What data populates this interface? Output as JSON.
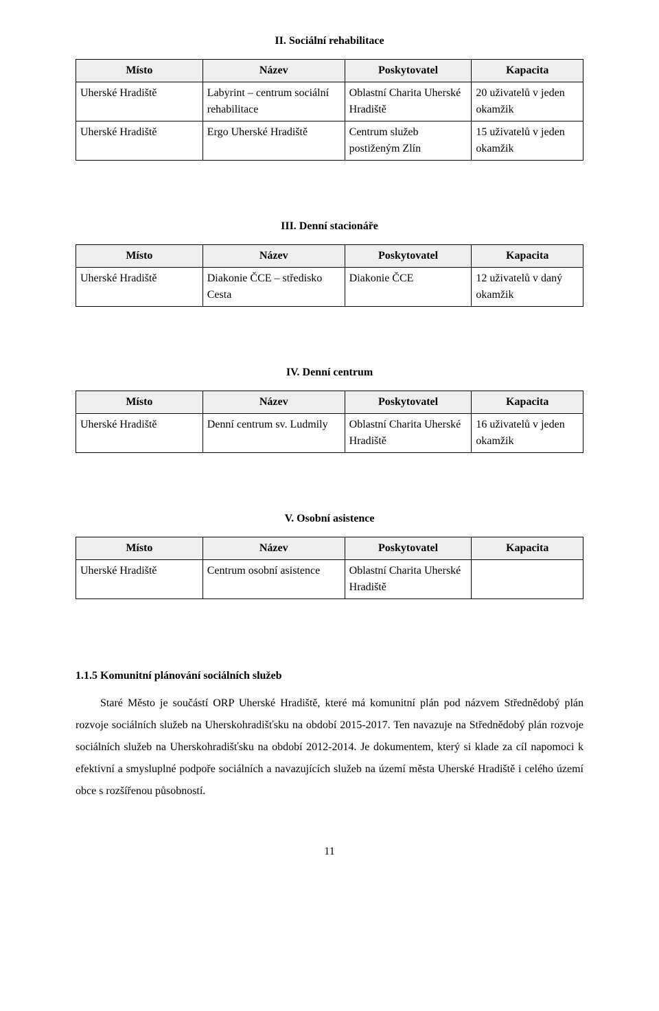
{
  "section2": {
    "title": "II. Sociální rehabilitace",
    "headers": [
      "Místo",
      "Název",
      "Poskytovatel",
      "Kapacita"
    ],
    "rows": [
      [
        "Uherské Hradiště",
        "Labyrint – centrum sociální rehabilitace",
        "Oblastní Charita Uherské Hradiště",
        "20 uživatelů v jeden okamžik"
      ],
      [
        "Uherské Hradiště",
        "Ergo Uherské Hradiště",
        "Centrum služeb postiženým Zlín",
        "15 uživatelů v jeden okamžik"
      ]
    ]
  },
  "section3": {
    "title": "III. Denní stacionáře",
    "headers": [
      "Místo",
      "Název",
      "Poskytovatel",
      "Kapacita"
    ],
    "rows": [
      [
        "Uherské Hradiště",
        "Diakonie ČCE – středisko Cesta",
        "Diakonie ČCE",
        "12 uživatelů v daný okamžik"
      ]
    ]
  },
  "section4": {
    "title": "IV. Denní centrum",
    "headers": [
      "Místo",
      "Název",
      "Poskytovatel",
      "Kapacita"
    ],
    "rows": [
      [
        "Uherské Hradiště",
        "Denní centrum sv. Ludmily",
        "Oblastní Charita Uherské Hradiště",
        "16 uživatelů v jeden okamžik"
      ]
    ]
  },
  "section5": {
    "title": "V. Osobní asistence",
    "headers": [
      "Místo",
      "Název",
      "Poskytovatel",
      "Kapacita"
    ],
    "rows": [
      [
        "Uherské Hradiště",
        "Centrum osobní asistence",
        "Oblastní Charita Uherské Hradiště",
        ""
      ]
    ]
  },
  "subheading": "1.1.5   Komunitní plánování sociálních služeb",
  "paragraph": "Staré Město je součástí ORP Uherské Hradiště, které má komunitní plán pod názvem Střednědobý plán rozvoje sociálních služeb na Uherskohradišťsku na období 2015-2017. Ten navazuje na Střednědobý plán rozvoje sociálních služeb na Uherskohradišťsku na období 2012-2014. Je dokumentem, který si klade za cíl napomoci k efektivní a smysluplné podpoře sociálních a navazujících služeb na území města Uherské Hradiště i celého území obce s rozšířenou působností.",
  "page_number": "11"
}
